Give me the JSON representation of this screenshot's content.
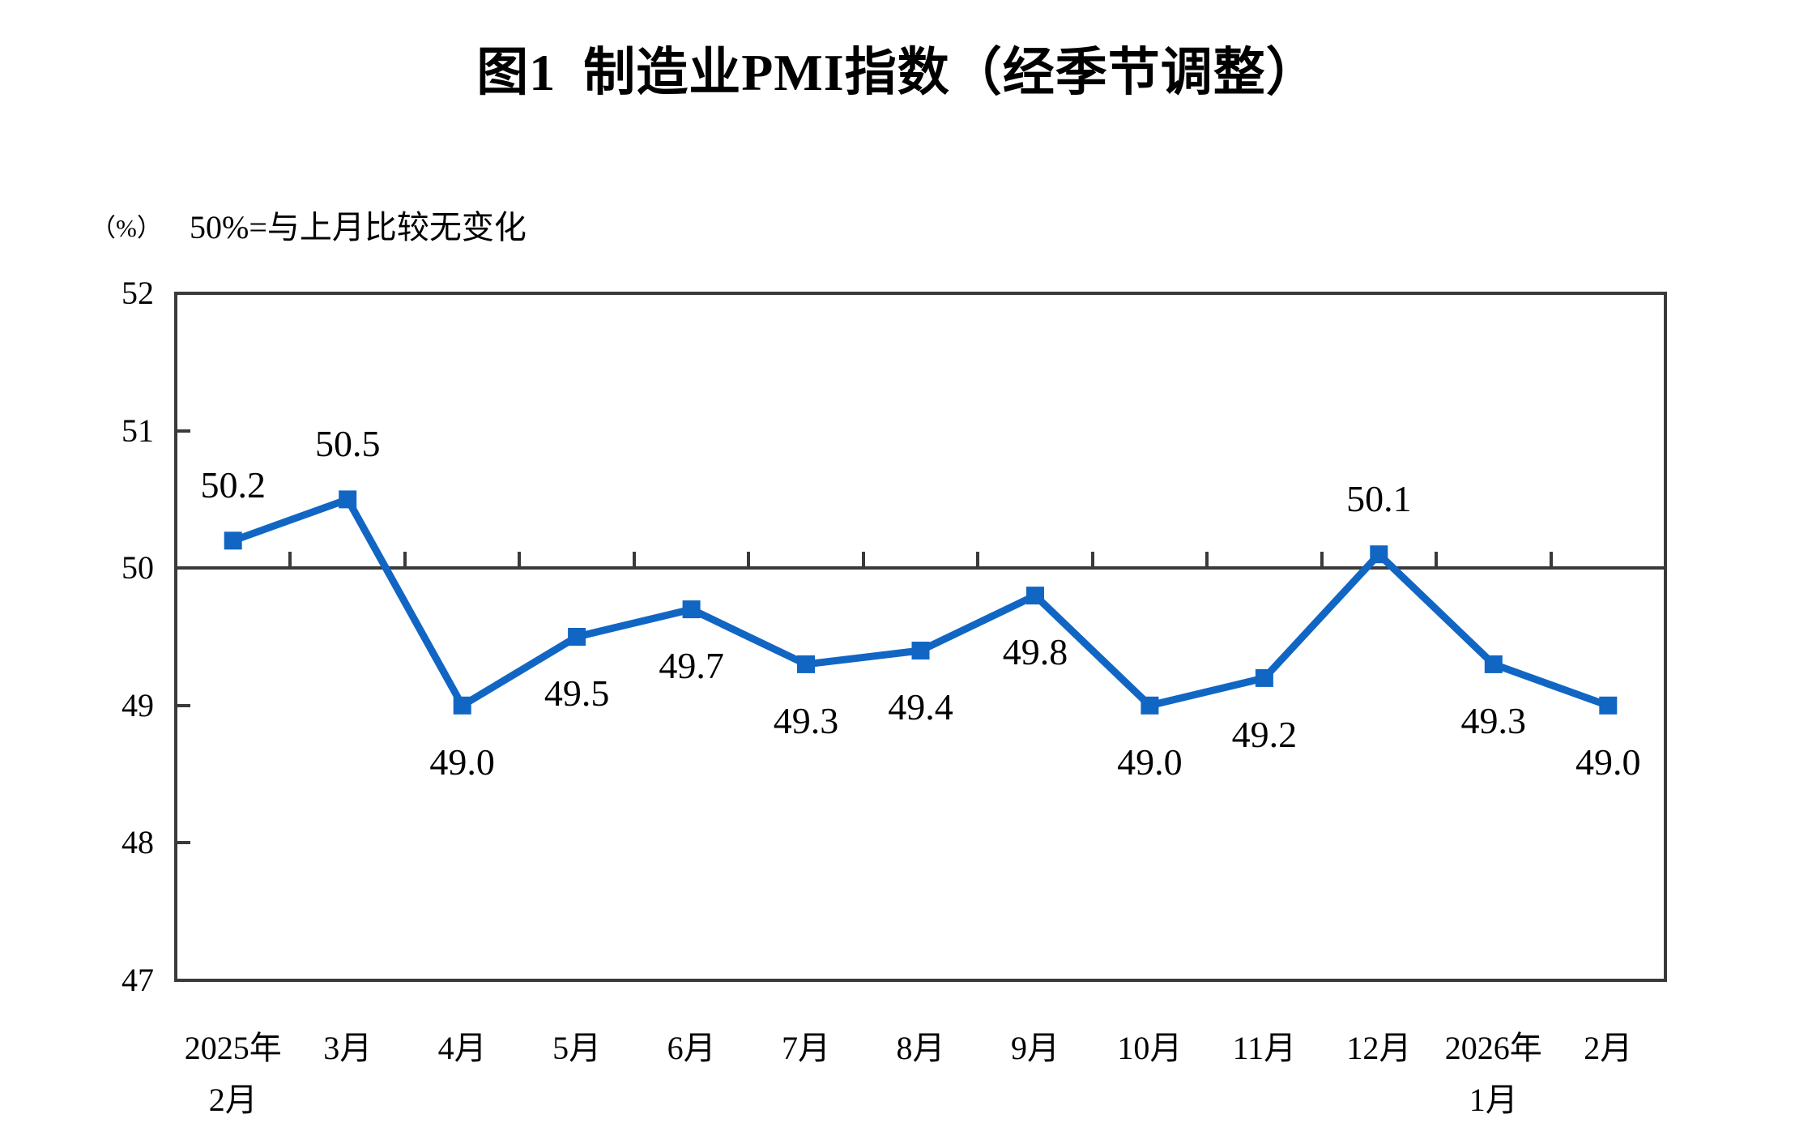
{
  "header": {
    "title": "图1  制造业PMI指数（经季节调整）",
    "unit_label": "（%）",
    "reference_note": "50%=与上月比较无变化"
  },
  "colors": {
    "series_line": "#1166c4",
    "axis": "#3a3a3a",
    "label_text": "#000000"
  },
  "chart_data": {
    "type": "line",
    "title": "图1 制造业PMI指数（经季节调整）",
    "unit": "（%）",
    "annotation": "50%=与上月比较无变化",
    "categories": [
      "2025年2月",
      "3月",
      "4月",
      "5月",
      "6月",
      "7月",
      "8月",
      "9月",
      "10月",
      "11月",
      "12月",
      "2026年1月",
      "2月"
    ],
    "category_label_lines": [
      [
        "2025年",
        "2月"
      ],
      [
        "3月"
      ],
      [
        "4月"
      ],
      [
        "5月"
      ],
      [
        "6月"
      ],
      [
        "7月"
      ],
      [
        "8月"
      ],
      [
        "9月"
      ],
      [
        "10月"
      ],
      [
        "11月"
      ],
      [
        "12月"
      ],
      [
        "2026年",
        "1月"
      ],
      [
        "2月"
      ]
    ],
    "values": [
      50.2,
      50.5,
      49.0,
      49.5,
      49.7,
      49.3,
      49.4,
      49.8,
      49.0,
      49.2,
      50.1,
      49.3,
      49.0
    ],
    "data_labels": [
      "50.2",
      "50.5",
      "49.0",
      "49.5",
      "49.7",
      "49.3",
      "49.4",
      "49.8",
      "49.0",
      "49.2",
      "50.1",
      "49.3",
      "49.0"
    ],
    "data_label_placement": [
      "above",
      "above",
      "below",
      "below",
      "below",
      "below",
      "below",
      "below",
      "below",
      "below",
      "above",
      "below",
      "below"
    ],
    "ylim": [
      47,
      52
    ],
    "yticks": [
      47,
      48,
      49,
      50,
      51,
      52
    ],
    "reference_line_y": 50,
    "grid": "off",
    "legend": "none",
    "marker": "square",
    "line_color": "#1166c4"
  }
}
